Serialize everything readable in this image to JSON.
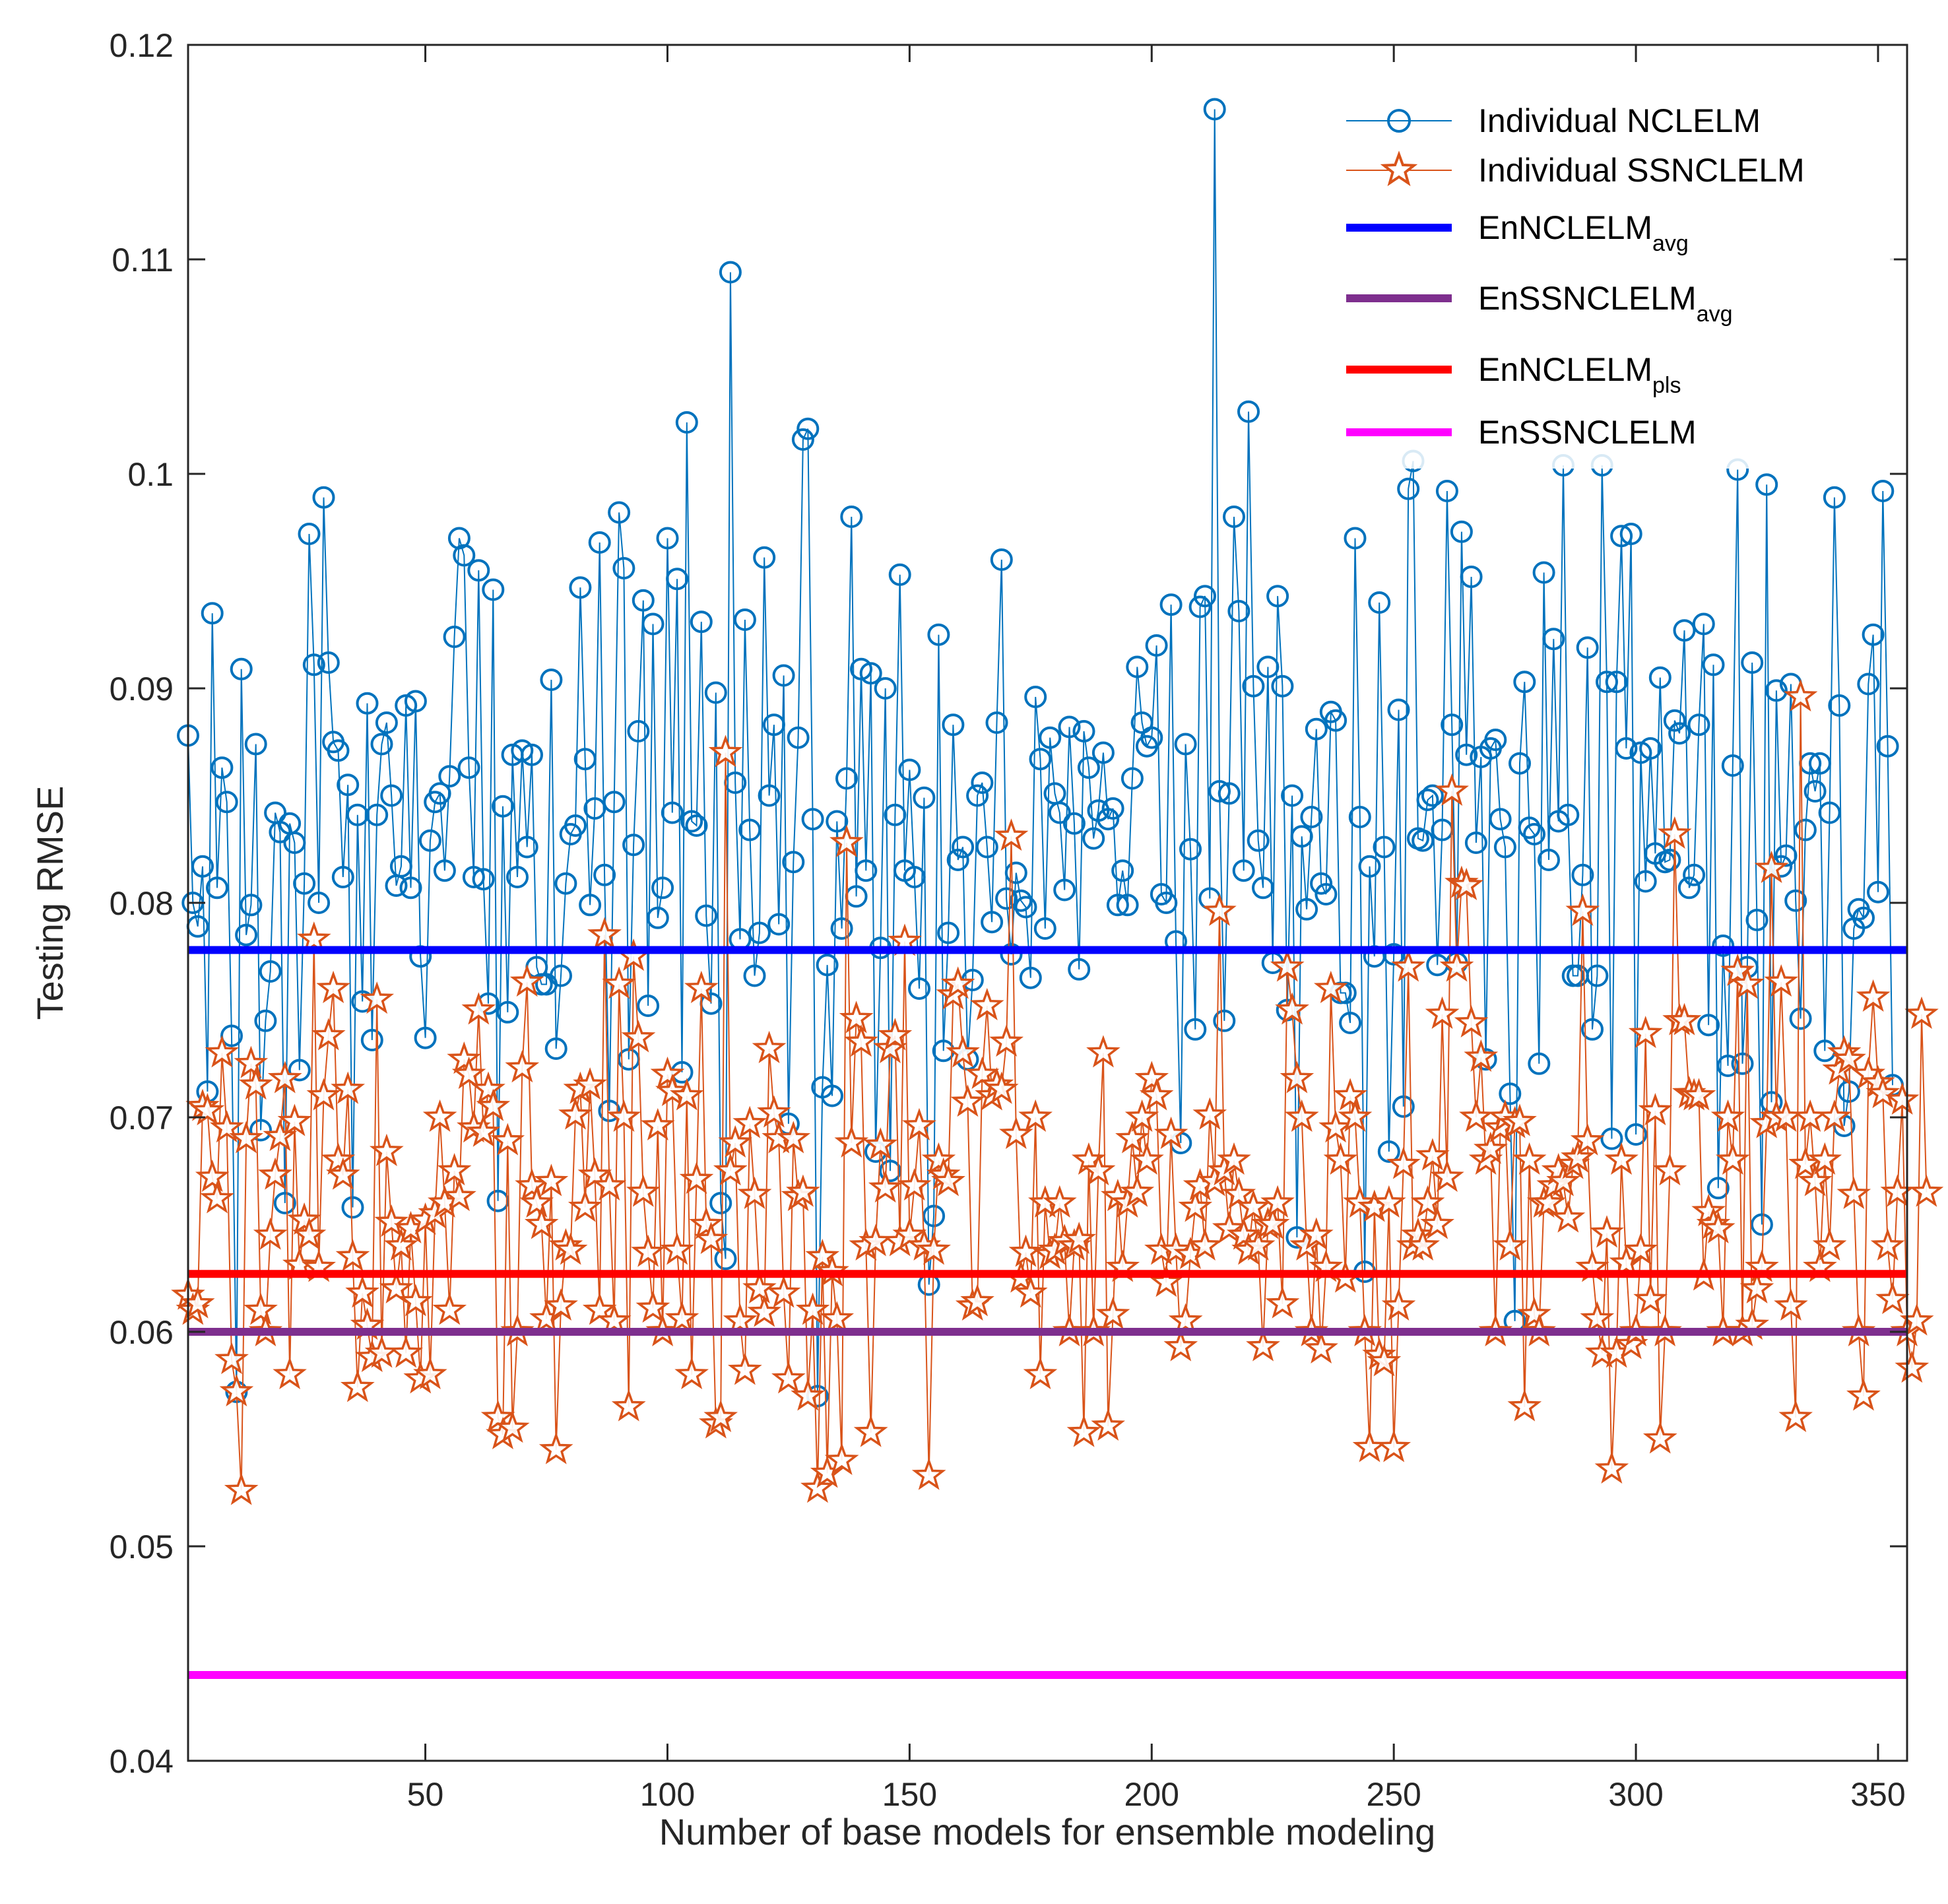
{
  "chart_data": {
    "type": "line",
    "xlabel": "Number of base models for ensemble modeling",
    "ylabel": "Testing RMSE",
    "xlim": [
      1,
      356
    ],
    "ylim": [
      0.04,
      0.12
    ],
    "xticks": [
      50,
      100,
      150,
      200,
      250,
      300,
      350
    ],
    "xtick_labels": [
      "50",
      "100",
      "150",
      "200",
      "250",
      "300",
      "350"
    ],
    "yticks": [
      0.04,
      0.05,
      0.06,
      0.07,
      0.08,
      0.09,
      0.1,
      0.11,
      0.12
    ],
    "ytick_labels": [
      "0.04",
      "0.05",
      "0.06",
      "0.07",
      "0.08",
      "0.09",
      "0.1",
      "0.11",
      "0.12"
    ],
    "grid": false,
    "legend_position": "top-right",
    "series": [
      {
        "name": "Individual NCLELM",
        "color": "#0072BD",
        "marker": "circle",
        "x_start": 1,
        "values": [
          0.0878,
          0.08,
          0.0789,
          0.0817,
          0.0712,
          0.0935,
          0.0807,
          0.0863,
          0.0847,
          0.0738,
          0.0572,
          0.0909,
          0.0785,
          0.0799,
          0.0874,
          0.0694,
          0.0745,
          0.0768,
          0.0842,
          0.0833,
          0.066,
          0.0837,
          0.0828,
          0.0722,
          0.0809,
          0.0972,
          0.0911,
          0.08,
          0.0989,
          0.0912,
          0.0875,
          0.0871,
          0.0812,
          0.0855,
          0.0658,
          0.0841,
          0.0754,
          0.0893,
          0.0736,
          0.0841,
          0.0874,
          0.0884,
          0.085,
          0.0808,
          0.0817,
          0.0892,
          0.0807,
          0.0894,
          0.0775,
          0.0737,
          0.0829,
          0.0847,
          0.0851,
          0.0815,
          0.0859,
          0.0924,
          0.097,
          0.0962,
          0.0863,
          0.0812,
          0.0955,
          0.0811,
          0.0753,
          0.0946,
          0.0661,
          0.0845,
          0.0749,
          0.0869,
          0.0812,
          0.0871,
          0.0826,
          0.0869,
          0.077,
          0.0762,
          0.0762,
          0.0904,
          0.0732,
          0.0766,
          0.0809,
          0.0832,
          0.0836,
          0.0947,
          0.0867,
          0.0799,
          0.0844,
          0.0968,
          0.0813,
          0.0703,
          0.0847,
          0.0982,
          0.0956,
          0.0727,
          0.0827,
          0.088,
          0.0941,
          0.0752,
          0.093,
          0.0793,
          0.0807,
          0.097,
          0.0842,
          0.0951,
          0.0721,
          0.1024,
          0.0838,
          0.0836,
          0.0931,
          0.0794,
          0.0753,
          0.0898,
          0.066,
          0.0634,
          0.1094,
          0.0856,
          0.0783,
          0.0932,
          0.0834,
          0.0766,
          0.0786,
          0.0961,
          0.085,
          0.0883,
          0.079,
          0.0906,
          0.0697,
          0.0819,
          0.0877,
          0.1016,
          0.1021,
          0.0839,
          0.057,
          0.0714,
          0.0771,
          0.071,
          0.0838,
          0.0788,
          0.0858,
          0.098,
          0.0803,
          0.0909,
          0.0815,
          0.0907,
          0.0684,
          0.0779,
          0.09,
          0.0675,
          0.0841,
          0.0953,
          0.0815,
          0.0862,
          0.0812,
          0.076,
          0.0849,
          0.0622,
          0.0654,
          0.0925,
          0.0731,
          0.0786,
          0.0883,
          0.082,
          0.0826,
          0.0727,
          0.0764,
          0.085,
          0.0856,
          0.0826,
          0.0791,
          0.0884,
          0.096,
          0.0802,
          0.0776,
          0.0814,
          0.0801,
          0.0798,
          0.0765,
          0.0896,
          0.0867,
          0.0788,
          0.0877,
          0.0851,
          0.0842,
          0.0806,
          0.0882,
          0.0837,
          0.0769,
          0.088,
          0.0863,
          0.083,
          0.0843,
          0.087,
          0.0839,
          0.0844,
          0.0799,
          0.0815,
          0.0799,
          0.0858,
          0.091,
          0.0884,
          0.0873,
          0.0877,
          0.092,
          0.0804,
          0.08,
          0.0939,
          0.0782,
          0.0688,
          0.0874,
          0.0825,
          0.0741,
          0.0938,
          0.0943,
          0.0802,
          0.117,
          0.0852,
          0.0745,
          0.0851,
          0.098,
          0.0936,
          0.0815,
          0.1029,
          0.0901,
          0.0829,
          0.0807,
          0.091,
          0.0772,
          0.0943,
          0.0901,
          0.075,
          0.085,
          0.0644,
          0.0831,
          0.0797,
          0.084,
          0.0881,
          0.0809,
          0.0804,
          0.0889,
          0.0885,
          0.0758,
          0.0758,
          0.0744,
          0.097,
          0.084,
          0.0628,
          0.0817,
          0.0775,
          0.094,
          0.0826,
          0.0684,
          0.0776,
          0.089,
          0.0705,
          0.0993,
          0.1006,
          0.083,
          0.0829,
          0.0848,
          0.085,
          0.0771,
          0.0834,
          0.0992,
          0.0883,
          0.0772,
          0.0973,
          0.0869,
          0.0952,
          0.0828,
          0.0868,
          0.0727,
          0.0872,
          0.0876,
          0.0839,
          0.0826,
          0.0711,
          0.0605,
          0.0865,
          0.0903,
          0.0835,
          0.0832,
          0.0725,
          0.0954,
          0.082,
          0.0923,
          0.0838,
          0.1004,
          0.0841,
          0.0766,
          0.0766,
          0.0813,
          0.0919,
          0.0741,
          0.0766,
          0.1004,
          0.0903,
          0.069,
          0.0903,
          0.0971,
          0.0872,
          0.0972,
          0.0692,
          0.087,
          0.081,
          0.0872,
          0.0823,
          0.0905,
          0.0819,
          0.082,
          0.0885,
          0.0879,
          0.0927,
          0.0807,
          0.0813,
          0.0883,
          0.093,
          0.0743,
          0.0911,
          0.0667,
          0.078,
          0.0724,
          0.0864,
          0.1002,
          0.0725,
          0.077,
          0.0912,
          0.0792,
          0.065,
          0.0995,
          0.0707,
          0.0899,
          0.0817,
          0.0822,
          0.0902,
          0.0801,
          0.0746,
          0.0834,
          0.0865,
          0.0852,
          0.0865,
          0.0731,
          0.0842,
          0.0989,
          0.0892,
          0.0696,
          0.0712,
          0.0788,
          0.0797,
          0.0793,
          0.0902,
          0.0925,
          0.0805,
          0.0992,
          0.0873,
          0.0715
        ]
      },
      {
        "name": "Individual SSNCLELM",
        "color": "#D95319",
        "marker": "star",
        "x_start": 1,
        "values": [
          0.0617,
          0.061,
          0.0613,
          0.0705,
          0.0703,
          0.0672,
          0.0662,
          0.073,
          0.0695,
          0.0587,
          0.0572,
          0.0526,
          0.069,
          0.0725,
          0.0715,
          0.061,
          0.06,
          0.0645,
          0.0673,
          0.0691,
          0.0718,
          0.058,
          0.0698,
          0.0631,
          0.0652,
          0.0645,
          0.0783,
          0.063,
          0.071,
          0.0738,
          0.076,
          0.068,
          0.0673,
          0.0713,
          0.0635,
          0.0574,
          0.0618,
          0.0603,
          0.0588,
          0.0755,
          0.059,
          0.0684,
          0.0651,
          0.062,
          0.064,
          0.059,
          0.0648,
          0.0614,
          0.0578,
          0.0652,
          0.058,
          0.0655,
          0.07,
          0.066,
          0.061,
          0.0675,
          0.0663,
          0.0727,
          0.072,
          0.0695,
          0.075,
          0.0693,
          0.0713,
          0.0705,
          0.056,
          0.0552,
          0.0689,
          0.0555,
          0.06,
          0.0723,
          0.0763,
          0.0668,
          0.066,
          0.065,
          0.0606,
          0.067,
          0.0545,
          0.0612,
          0.064,
          0.0638,
          0.0701,
          0.0713,
          0.0658,
          0.0715,
          0.0673,
          0.061,
          0.0785,
          0.0668,
          0.0605,
          0.0762,
          0.07,
          0.0565,
          0.0775,
          0.0737,
          0.0665,
          0.0637,
          0.0611,
          0.0696,
          0.06,
          0.072,
          0.0712,
          0.0638,
          0.0606,
          0.071,
          0.058,
          0.0671,
          0.076,
          0.065,
          0.0643,
          0.0557,
          0.056,
          0.087,
          0.0675,
          0.0688,
          0.0605,
          0.0582,
          0.0697,
          0.0664,
          0.062,
          0.0609,
          0.0732,
          0.0702,
          0.069,
          0.0618,
          0.0578,
          0.069,
          0.0663,
          0.0665,
          0.057,
          0.061,
          0.0527,
          0.0635,
          0.0534,
          0.0628,
          0.0606,
          0.054,
          0.0828,
          0.0688,
          0.0746,
          0.0735,
          0.064,
          0.0553,
          0.0642,
          0.0687,
          0.0667,
          0.0732,
          0.0738,
          0.0642,
          0.0782,
          0.0645,
          0.0668,
          0.0696,
          0.064,
          0.0533,
          0.0638,
          0.068,
          0.0673,
          0.067,
          0.0757,
          0.0762,
          0.073,
          0.0707,
          0.0612,
          0.0614,
          0.072,
          0.0752,
          0.071,
          0.0715,
          0.0713,
          0.0735,
          0.0831,
          0.0692,
          0.0625,
          0.0637,
          0.0618,
          0.07,
          0.058,
          0.066,
          0.0636,
          0.0638,
          0.066,
          0.0642,
          0.06,
          0.064,
          0.0643,
          0.0553,
          0.068,
          0.06,
          0.0675,
          0.073,
          0.0556,
          0.0608,
          0.0663,
          0.063,
          0.066,
          0.069,
          0.0665,
          0.07,
          0.068,
          0.0718,
          0.071,
          0.0638,
          0.0623,
          0.0692,
          0.0638,
          0.0593,
          0.0605,
          0.0636,
          0.0658,
          0.0668,
          0.064,
          0.0701,
          0.067,
          0.0796,
          0.0675,
          0.0648,
          0.068,
          0.0664,
          0.0645,
          0.0638,
          0.0658,
          0.064,
          0.0593,
          0.065,
          0.065,
          0.066,
          0.0613,
          0.077,
          0.075,
          0.0718,
          0.07,
          0.064,
          0.06,
          0.0645,
          0.0592,
          0.063,
          0.076,
          0.0695,
          0.068,
          0.0625,
          0.071,
          0.07,
          0.066,
          0.06,
          0.0546,
          0.0658,
          0.0589,
          0.0586,
          0.066,
          0.0546,
          0.0612,
          0.0678,
          0.077,
          0.064,
          0.0645,
          0.064,
          0.066,
          0.0682,
          0.065,
          0.0748,
          0.0672,
          0.0852,
          0.077,
          0.0809,
          0.0808,
          0.0744,
          0.07,
          0.0728,
          0.068,
          0.0685,
          0.06,
          0.0695,
          0.07,
          0.064,
          0.0697,
          0.0698,
          0.0565,
          0.068,
          0.0608,
          0.06,
          0.066,
          0.066,
          0.0668,
          0.0675,
          0.067,
          0.0653,
          0.0678,
          0.0681,
          0.0796,
          0.0689,
          0.063,
          0.0606,
          0.059,
          0.0646,
          0.0536,
          0.059,
          0.068,
          0.0632,
          0.0594,
          0.06,
          0.0638,
          0.0739,
          0.0615,
          0.0703,
          0.055,
          0.06,
          0.0675,
          0.0832,
          0.0745,
          0.0745,
          0.0711,
          0.071,
          0.071,
          0.0626,
          0.0656,
          0.065,
          0.0648,
          0.06,
          0.07,
          0.068,
          0.0768,
          0.06,
          0.0762,
          0.0603,
          0.062,
          0.063,
          0.0697,
          0.0816,
          0.07,
          0.0763,
          0.07,
          0.0612,
          0.056,
          0.0896,
          0.0678,
          0.07,
          0.067,
          0.063,
          0.068,
          0.064,
          0.07,
          0.0722,
          0.073,
          0.0727,
          0.0664,
          0.06,
          0.057,
          0.072,
          0.0756,
          0.0716,
          0.0711,
          0.064,
          0.0615,
          0.0665,
          0.0708,
          0.06,
          0.0583,
          0.0605,
          0.0748,
          0.0665
        ]
      },
      {
        "name": "EnNCLELM",
        "subscript": "avg",
        "color": "#0000FF",
        "type": "hline",
        "value": 0.0778
      },
      {
        "name": "EnSSNCLELM",
        "subscript": "avg",
        "color": "#7E2F8E",
        "type": "hline",
        "value": 0.06
      },
      {
        "name": "EnNCLELM",
        "subscript": "pls",
        "color": "#FF0000",
        "type": "hline",
        "value": 0.0627
      },
      {
        "name": "EnSSNCLELM",
        "subscript": "",
        "color": "#FF00FF",
        "type": "hline",
        "value": 0.044
      }
    ]
  }
}
